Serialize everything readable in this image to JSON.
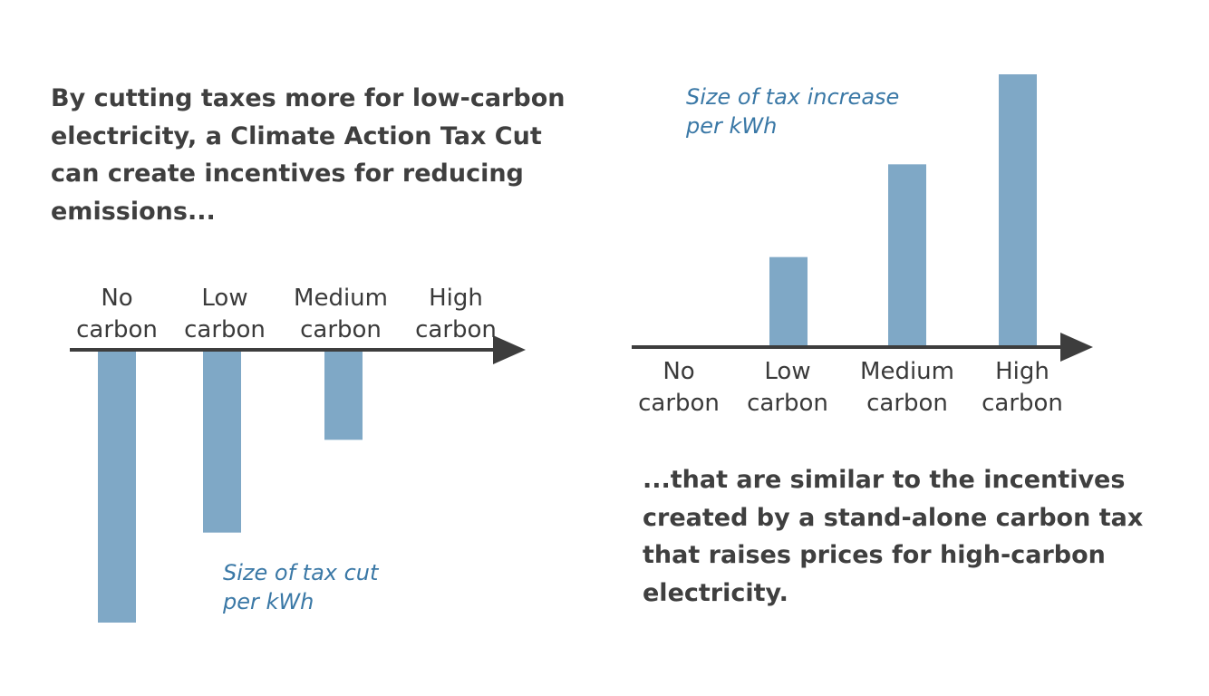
{
  "headline_left": "By cutting taxes more for low-carbon electricity, a Climate Action Tax Cut can create incentives for reducing emissions...",
  "headline_right": "...that are similar to the incentives created by a stand-alone carbon tax that raises prices for high-carbon electricity.",
  "colors": {
    "bar": "#7fa8c6",
    "axis": "#3d3d3d",
    "series_label": "#3a78a6",
    "text": "#3a3a3a"
  },
  "chart_data": [
    {
      "type": "bar",
      "direction": "down",
      "categories": [
        [
          "No",
          "carbon"
        ],
        [
          "Low",
          "carbon"
        ],
        [
          "Medium",
          "carbon"
        ],
        [
          "High",
          "carbon"
        ]
      ],
      "series": [
        {
          "name": [
            "Size of tax cut",
            "per kWh"
          ],
          "values": [
            100,
            67,
            33,
            0
          ]
        }
      ],
      "ylim": [
        0,
        100
      ],
      "grid": false
    },
    {
      "type": "bar",
      "direction": "up",
      "categories": [
        [
          "No",
          "carbon"
        ],
        [
          "Low",
          "carbon"
        ],
        [
          "Medium",
          "carbon"
        ],
        [
          "High",
          "carbon"
        ]
      ],
      "series": [
        {
          "name": [
            "Size of tax increase",
            "per kWh"
          ],
          "values": [
            0,
            33,
            67,
            100
          ]
        }
      ],
      "ylim": [
        0,
        100
      ],
      "grid": false
    }
  ]
}
